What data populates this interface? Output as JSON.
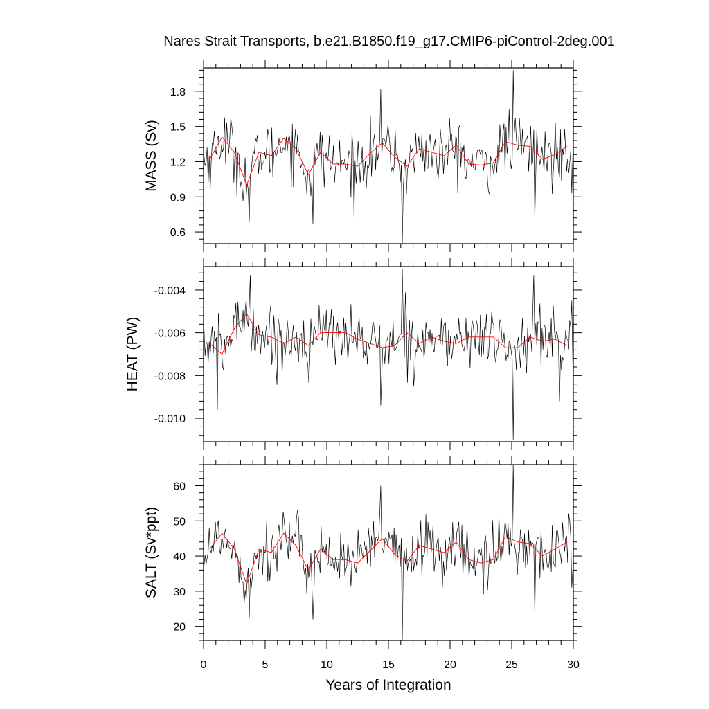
{
  "title": "Nares Strait Transports, b.e21.B1850.f19_g17.CMIP6-piControl-2deg.001",
  "xlabel": "Years of Integration",
  "x_ticks": [
    "0",
    "5",
    "10",
    "15",
    "20",
    "25",
    "30"
  ],
  "chart_data": [
    {
      "type": "line",
      "ylabel": "MASS (Sv)",
      "xlim": [
        0,
        30
      ],
      "ylim": [
        0.5,
        2.0
      ],
      "y_ticks": [
        "1.8",
        "1.5",
        "1.2",
        "0.9",
        "0.6"
      ],
      "y_tick_values": [
        1.8,
        1.5,
        1.2,
        0.9,
        0.6
      ],
      "monthly_colors": [
        "#000000",
        "#ff0000"
      ],
      "annual_mean": {
        "x": [
          0.5,
          1.5,
          2.5,
          3.5,
          4.5,
          5.5,
          6.5,
          7.5,
          8.5,
          9.5,
          10.5,
          11.5,
          12.5,
          13.5,
          14.5,
          15.5,
          16.5,
          17.5,
          18.5,
          19.5,
          20.5,
          21.5,
          22.5,
          23.5,
          24.5,
          25.5,
          26.5,
          27.5,
          28.5,
          29.5
        ],
        "y": [
          1.22,
          1.41,
          1.28,
          1.0,
          1.28,
          1.25,
          1.4,
          1.31,
          1.09,
          1.28,
          1.18,
          1.18,
          1.16,
          1.27,
          1.36,
          1.24,
          1.16,
          1.31,
          1.28,
          1.25,
          1.34,
          1.18,
          1.17,
          1.19,
          1.37,
          1.34,
          1.33,
          1.22,
          1.26,
          1.33
        ]
      },
      "monthly_spikes": [
        [
          3.7,
          0.69
        ],
        [
          8.9,
          0.67
        ],
        [
          14.4,
          1.82
        ],
        [
          16.1,
          0.5
        ],
        [
          25.1,
          1.98
        ],
        [
          26.9,
          0.7
        ],
        [
          29.9,
          0.93
        ]
      ]
    },
    {
      "type": "line",
      "ylabel": "HEAT (PW)",
      "xlim": [
        0,
        30
      ],
      "ylim": [
        -0.0111,
        -0.0029
      ],
      "y_ticks": [
        "-0.004",
        "-0.006",
        "-0.008",
        "-0.010"
      ],
      "y_tick_values": [
        -0.004,
        -0.006,
        -0.008,
        -0.01
      ],
      "annual_mean": {
        "x": [
          0.5,
          1.5,
          2.5,
          3.5,
          4.5,
          5.5,
          6.5,
          7.5,
          8.5,
          9.5,
          10.5,
          11.5,
          12.5,
          13.5,
          14.5,
          15.5,
          16.5,
          17.5,
          18.5,
          19.5,
          20.5,
          21.5,
          22.5,
          23.5,
          24.5,
          25.5,
          26.5,
          27.5,
          28.5,
          29.5
        ],
        "y": [
          -0.0065,
          -0.007,
          -0.0058,
          -0.0051,
          -0.0061,
          -0.0062,
          -0.0065,
          -0.0062,
          -0.0066,
          -0.006,
          -0.006,
          -0.006,
          -0.0063,
          -0.0065,
          -0.0067,
          -0.0066,
          -0.006,
          -0.0065,
          -0.0062,
          -0.0064,
          -0.0065,
          -0.0062,
          -0.0062,
          -0.0062,
          -0.0067,
          -0.0067,
          -0.0062,
          -0.0064,
          -0.0063,
          -0.0066
        ]
      },
      "monthly_spikes": [
        [
          1.1,
          -0.0096
        ],
        [
          3.8,
          -0.0033
        ],
        [
          14.4,
          -0.0094
        ],
        [
          16.1,
          -0.003
        ],
        [
          25.1,
          -0.011
        ],
        [
          26.8,
          -0.0033
        ],
        [
          28.9,
          -0.0092
        ],
        [
          29.9,
          -0.0045
        ]
      ]
    },
    {
      "type": "line",
      "ylabel": "SALT (Sv*ppt)",
      "xlim": [
        0,
        30
      ],
      "ylim": [
        16,
        66
      ],
      "y_ticks": [
        "60",
        "50",
        "40",
        "30",
        "20"
      ],
      "y_tick_values": [
        60,
        50,
        40,
        30,
        20
      ],
      "annual_mean": {
        "x": [
          0.5,
          1.5,
          2.5,
          3.5,
          4.5,
          5.5,
          6.5,
          7.5,
          8.5,
          9.5,
          10.5,
          11.5,
          12.5,
          13.5,
          14.5,
          15.5,
          16.5,
          17.5,
          18.5,
          19.5,
          20.5,
          21.5,
          22.5,
          23.5,
          24.5,
          25.5,
          26.5,
          27.5,
          28.5,
          29.5
        ],
        "y": [
          42,
          46.5,
          42,
          32,
          42,
          41,
          46.5,
          43,
          36,
          42,
          39,
          39,
          38,
          41.5,
          45,
          40.5,
          38.5,
          43,
          42,
          41,
          44,
          39,
          38,
          39,
          45.5,
          44,
          43.5,
          40,
          42,
          44
        ]
      },
      "monthly_spikes": [
        [
          3.7,
          22.5
        ],
        [
          8.9,
          22
        ],
        [
          14.4,
          60
        ],
        [
          16.1,
          16
        ],
        [
          25.1,
          66
        ],
        [
          26.9,
          23
        ],
        [
          29.9,
          31
        ]
      ]
    }
  ]
}
